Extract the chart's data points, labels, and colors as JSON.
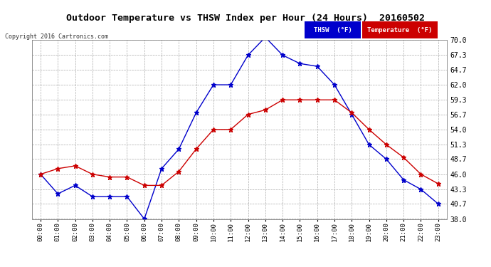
{
  "title": "Outdoor Temperature vs THSW Index per Hour (24 Hours)  20160502",
  "copyright": "Copyright 2016 Cartronics.com",
  "hours": [
    "00:00",
    "01:00",
    "02:00",
    "03:00",
    "04:00",
    "05:00",
    "06:00",
    "07:00",
    "08:00",
    "09:00",
    "10:00",
    "11:00",
    "12:00",
    "13:00",
    "14:00",
    "15:00",
    "16:00",
    "17:00",
    "18:00",
    "19:00",
    "20:00",
    "21:00",
    "22:00",
    "23:00"
  ],
  "thsw": [
    46.0,
    42.5,
    44.0,
    42.0,
    42.0,
    42.0,
    38.0,
    47.0,
    50.5,
    57.0,
    62.0,
    62.0,
    67.3,
    70.5,
    67.3,
    65.8,
    65.3,
    62.0,
    56.7,
    51.3,
    48.7,
    45.0,
    43.3,
    40.7
  ],
  "temperature": [
    46.0,
    47.0,
    47.5,
    46.0,
    45.5,
    45.5,
    44.0,
    44.0,
    46.5,
    50.5,
    54.0,
    54.0,
    56.7,
    57.5,
    59.3,
    59.3,
    59.3,
    59.3,
    57.0,
    54.0,
    51.3,
    49.0,
    46.0,
    44.3
  ],
  "thsw_color": "#0000cc",
  "temp_color": "#cc0000",
  "bg_color": "#ffffff",
  "plot_bg_color": "#ffffff",
  "grid_color": "#aaaaaa",
  "ylim_min": 38.0,
  "ylim_max": 70.0,
  "yticks": [
    38.0,
    40.7,
    43.3,
    46.0,
    48.7,
    51.3,
    54.0,
    56.7,
    59.3,
    62.0,
    64.7,
    67.3,
    70.0
  ],
  "ytick_labels": [
    "38.0",
    "40.7",
    "43.3",
    "46.0",
    "48.7",
    "51.3",
    "54.0",
    "56.7",
    "59.3",
    "62.0",
    "64.7",
    "67.3",
    "70.0"
  ]
}
